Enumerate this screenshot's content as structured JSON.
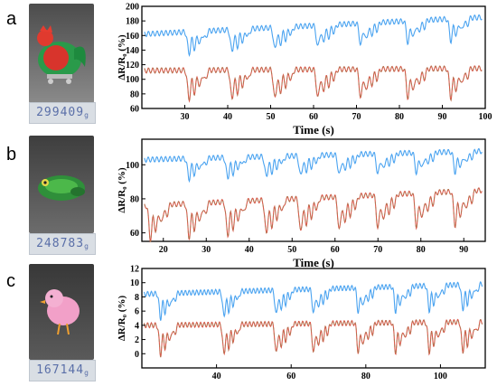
{
  "panels": [
    {
      "letter": "a",
      "scale_reading": "299409",
      "scale_unit": "g"
    },
    {
      "letter": "b",
      "scale_reading": "248783",
      "scale_unit": "g"
    },
    {
      "letter": "c",
      "scale_reading": "167144",
      "scale_unit": "g"
    }
  ],
  "colors": {
    "blue": "#4aa3f0",
    "red": "#d9594a",
    "brown": "#a67c52"
  },
  "chart_data": [
    {
      "type": "line",
      "xlabel": "Time (s)",
      "ylabel": "ΔR/R₀ (%)",
      "xlim": [
        20,
        100
      ],
      "ylim": [
        60,
        200
      ],
      "xticks": [
        30,
        40,
        50,
        60,
        70,
        80,
        90,
        100
      ],
      "yticks": [
        60,
        80,
        100,
        120,
        140,
        160,
        180,
        200
      ],
      "grid": false,
      "series": [
        {
          "color": "blue",
          "baseline_start": 162,
          "baseline_end": 185,
          "dips": [
            31,
            41,
            51,
            61,
            71,
            82,
            92
          ],
          "dip_depth": 30
        },
        {
          "color": "red-brown",
          "baseline_start": 112,
          "baseline_end": 115,
          "dips": [
            31,
            41,
            51,
            61,
            71,
            82,
            92
          ],
          "dip_depth": 40
        }
      ]
    },
    {
      "type": "line",
      "xlabel": "Time (s)",
      "ylabel": "ΔR/R₀ (%)",
      "xlim": [
        15,
        95
      ],
      "ylim": [
        55,
        115
      ],
      "xticks": [
        20,
        30,
        40,
        50,
        60,
        70,
        80,
        90
      ],
      "yticks": [
        60,
        80,
        100
      ],
      "grid": false,
      "series": [
        {
          "color": "blue",
          "baseline_start": 103,
          "baseline_end": 108,
          "dips": [
            26,
            35,
            44,
            52,
            61,
            70,
            79,
            88
          ],
          "dip_depth": 12
        },
        {
          "color": "red-brown",
          "baseline_start": 76,
          "baseline_end": 85,
          "dips": [
            17,
            26,
            35,
            44,
            52,
            61,
            70,
            79,
            88
          ],
          "dip_depth": 20
        }
      ]
    },
    {
      "type": "line",
      "xlabel": "",
      "ylabel": "ΔR/R₀ (%)",
      "xlim": [
        20,
        112
      ],
      "ylim": [
        -2,
        12
      ],
      "xticks": [
        40,
        60,
        80,
        100
      ],
      "yticks": [
        0,
        2,
        4,
        6,
        8,
        10,
        12
      ],
      "grid": false,
      "series": [
        {
          "color": "blue",
          "baseline_start": 8.4,
          "baseline_end": 9.8,
          "dips": [
            25,
            42,
            56,
            66,
            78,
            88,
            97,
            106
          ],
          "dip_depth": 3.5
        },
        {
          "color": "red-brown",
          "baseline_start": 4.0,
          "baseline_end": 4.5,
          "dips": [
            25,
            42,
            56,
            66,
            78,
            88,
            97,
            106
          ],
          "dip_depth": 4.2
        }
      ]
    }
  ]
}
